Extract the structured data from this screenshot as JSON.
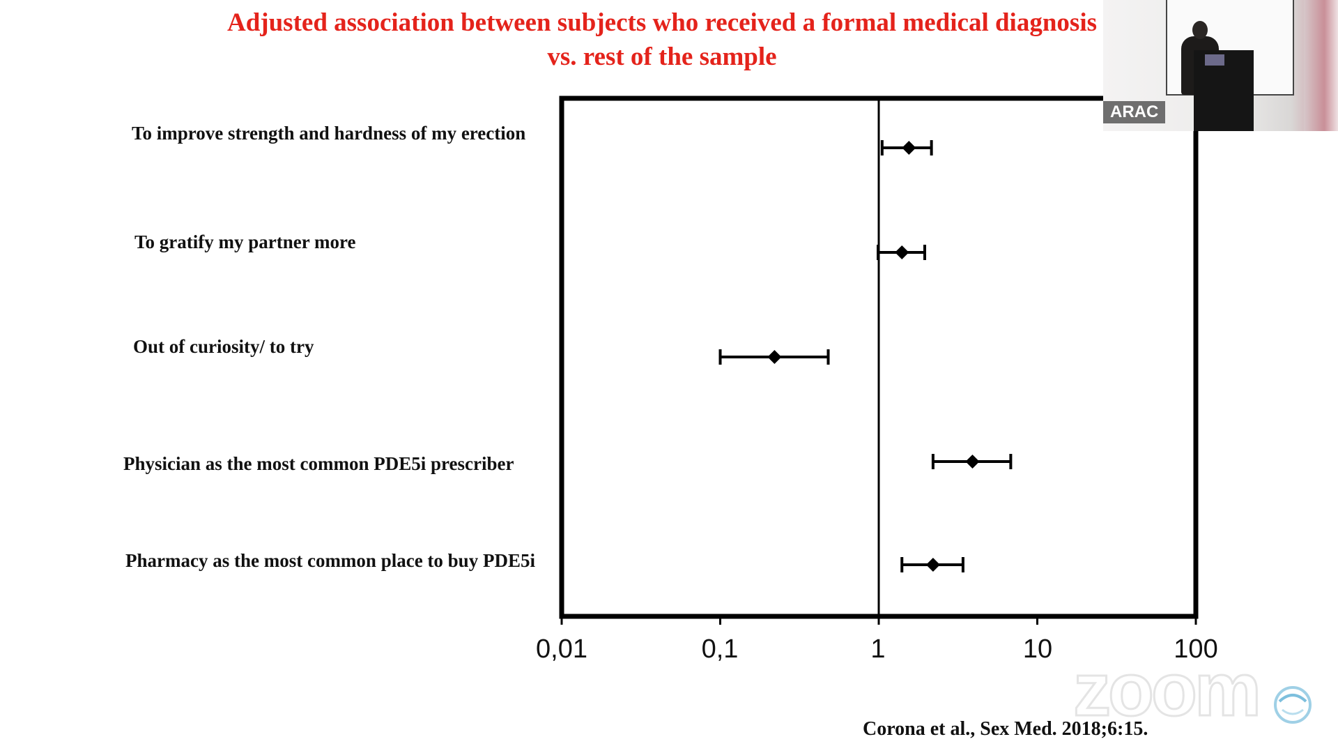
{
  "slide": {
    "title_line1": "Adjusted association between subjects who received a formal medical diagnosis",
    "title_line2": "vs. rest of the sample",
    "citation": "Corona et al., Sex Med. 2018;6:15."
  },
  "webcam": {
    "name": "ARAC"
  },
  "watermark": {
    "text": "zoom"
  },
  "chart_data": {
    "type": "forest",
    "x_scale": "log",
    "xlim": [
      0.01,
      100
    ],
    "reference_line": 1,
    "x_ticks": [
      0.01,
      0.1,
      1,
      10,
      100
    ],
    "x_tick_labels": [
      "0,01",
      "0,1",
      "1",
      "10",
      "100"
    ],
    "grid": false,
    "categories": [
      "To improve strength and hardness of my erection",
      "To gratify my partner more",
      "Out of curiosity/ to try",
      "Physician as the most common PDE5i prescriber",
      "Pharmacy as the most common place to buy PDE5i"
    ],
    "points": [
      {
        "estimate": 1.55,
        "lower": 1.05,
        "upper": 2.15
      },
      {
        "estimate": 1.4,
        "lower": 0.99,
        "upper": 1.95
      },
      {
        "estimate": 0.22,
        "lower": 0.1,
        "upper": 0.48
      },
      {
        "estimate": 3.9,
        "lower": 2.2,
        "upper": 6.8
      },
      {
        "estimate": 2.2,
        "lower": 1.4,
        "upper": 3.4
      }
    ],
    "marker_color": "#000000"
  }
}
